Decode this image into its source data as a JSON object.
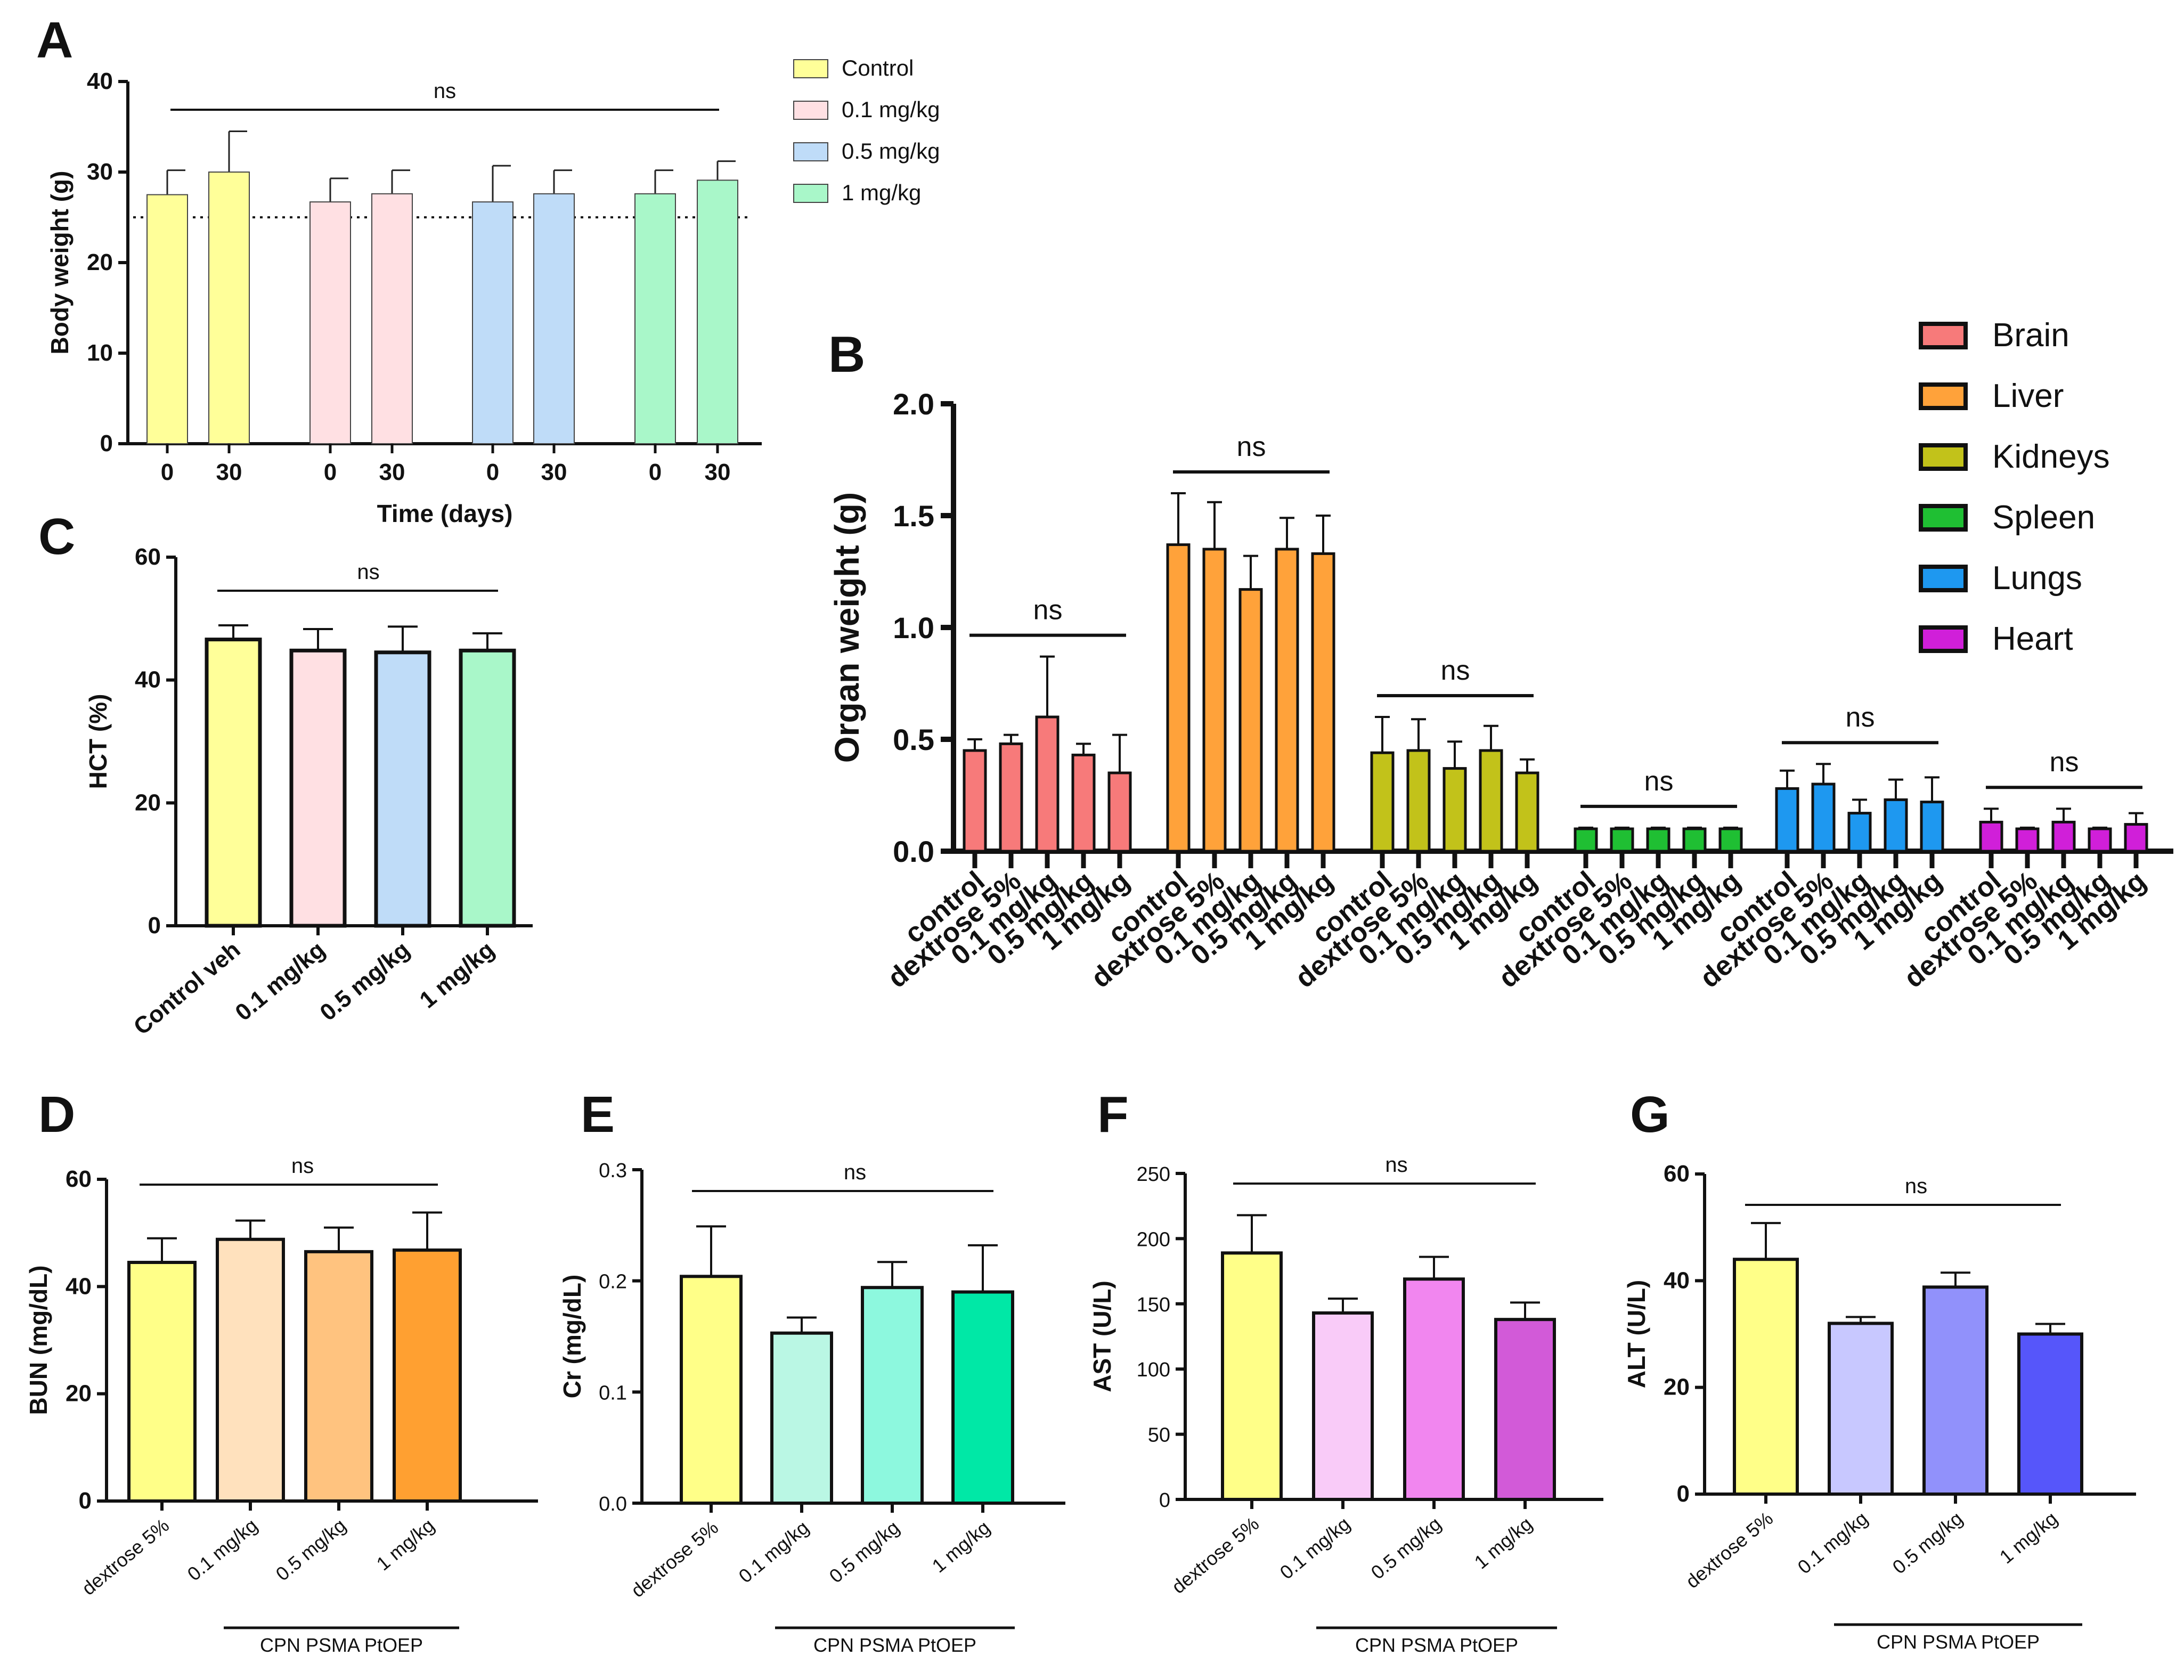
{
  "chart_data": [
    {
      "panel": "A",
      "type": "bar",
      "ylabel": "Body weight (g)",
      "xlabel": "Time (days)",
      "ylim": [
        0,
        40
      ],
      "yticks": [
        "0",
        "10",
        "20",
        "30",
        "40"
      ],
      "significance": "ns",
      "reference_line_y": 25,
      "series": [
        {
          "name": "Control",
          "color": "#ffff99",
          "categories": [
            "0",
            "30"
          ],
          "values": [
            27.5,
            30.0
          ],
          "errors": [
            2.7,
            4.5
          ]
        },
        {
          "name": "0.1 mg/kg",
          "color": "#ffe0e3",
          "categories": [
            "0",
            "30"
          ],
          "values": [
            26.7,
            27.6
          ],
          "errors": [
            2.6,
            2.6
          ]
        },
        {
          "name": "0.5 mg/kg",
          "color": "#bfdcf8",
          "categories": [
            "0",
            "30"
          ],
          "values": [
            26.7,
            27.6
          ],
          "errors": [
            4.0,
            2.6
          ]
        },
        {
          "name": "1 mg/kg",
          "color": "#a9f7c9",
          "categories": [
            "0",
            "30"
          ],
          "values": [
            27.6,
            29.1
          ],
          "errors": [
            2.6,
            2.1
          ]
        }
      ]
    },
    {
      "panel": "B",
      "type": "bar",
      "ylabel": "Organ weight (g)",
      "ylim": [
        0,
        2.0
      ],
      "yticks": [
        "0.0",
        "0.5",
        "1.0",
        "1.5",
        "2.0"
      ],
      "categories": [
        "control",
        "dextrose 5%",
        "0.1 mg/kg",
        "0.5 mg/kg",
        "1 mg/kg"
      ],
      "series": [
        {
          "name": "Brain",
          "color": "#f77a7a",
          "values": [
            0.45,
            0.48,
            0.6,
            0.43,
            0.35
          ],
          "errors": [
            0.05,
            0.04,
            0.27,
            0.05,
            0.17
          ],
          "significance": "ns"
        },
        {
          "name": "Liver",
          "color": "#ffa23a",
          "values": [
            1.37,
            1.35,
            1.17,
            1.35,
            1.33
          ],
          "errors": [
            0.23,
            0.21,
            0.15,
            0.14,
            0.17
          ],
          "significance": "ns"
        },
        {
          "name": "Kidneys",
          "color": "#c2c21a",
          "values": [
            0.44,
            0.45,
            0.37,
            0.45,
            0.35
          ],
          "errors": [
            0.16,
            0.14,
            0.12,
            0.11,
            0.06
          ],
          "significance": "ns"
        },
        {
          "name": "Spleen",
          "color": "#1fbf33",
          "values": [
            0.1,
            0.1,
            0.1,
            0.1,
            0.1
          ],
          "errors": [
            0.005,
            0.005,
            0.005,
            0.005,
            0.005
          ],
          "significance": "ns"
        },
        {
          "name": "Lungs",
          "color": "#1e98f0",
          "values": [
            0.28,
            0.3,
            0.17,
            0.23,
            0.22
          ],
          "errors": [
            0.08,
            0.09,
            0.06,
            0.09,
            0.11
          ],
          "significance": "ns"
        },
        {
          "name": "Heart",
          "color": "#d01fd9",
          "values": [
            0.13,
            0.1,
            0.13,
            0.1,
            0.12
          ],
          "errors": [
            0.06,
            0.005,
            0.06,
            0.005,
            0.05
          ],
          "significance": "ns"
        }
      ]
    },
    {
      "panel": "C",
      "type": "bar",
      "ylabel": "HCT (%)",
      "ylim": [
        0,
        60
      ],
      "yticks": [
        "0",
        "20",
        "40",
        "60"
      ],
      "categories": [
        "Control veh",
        "0.1 mg/kg",
        "0.5 mg/kg",
        "1 mg/kg"
      ],
      "values": [
        46.6,
        44.8,
        44.5,
        44.8
      ],
      "errors": [
        2.3,
        3.5,
        4.2,
        2.8
      ],
      "colors": [
        "#ffff99",
        "#ffe0e3",
        "#bfdcf8",
        "#a9f7c9"
      ],
      "significance": "ns"
    },
    {
      "panel": "D",
      "type": "bar",
      "ylabel": "BUN (mg/dL)",
      "ylim": [
        0,
        60
      ],
      "yticks": [
        "0",
        "20",
        "40",
        "60"
      ],
      "categories": [
        "dextrose 5%",
        "0.1 mg/kg",
        "0.5 mg/kg",
        "1 mg/kg"
      ],
      "values": [
        44.5,
        48.8,
        46.5,
        46.8
      ],
      "errors": [
        4.5,
        3.5,
        4.5,
        7.0
      ],
      "colors": [
        "#ffff88",
        "#ffe1bd",
        "#ffc37f",
        "#ffa031"
      ],
      "significance": "ns",
      "group_label": "CPN PSMA PtOEP"
    },
    {
      "panel": "E",
      "type": "bar",
      "ylabel": "Cr (mg/dL)",
      "ylim": [
        0,
        0.3
      ],
      "yticks": [
        "0.0",
        "0.1",
        "0.2",
        "0.3"
      ],
      "categories": [
        "dextrose 5%",
        "0.1 mg/kg",
        "0.5 mg/kg",
        "1 mg/kg"
      ],
      "values": [
        0.204,
        0.153,
        0.194,
        0.19
      ],
      "errors": [
        0.045,
        0.014,
        0.023,
        0.042
      ],
      "colors": [
        "#ffff88",
        "#baf7e4",
        "#8df8de",
        "#00e8a6"
      ],
      "significance": "ns",
      "group_label": "CPN PSMA PtOEP"
    },
    {
      "panel": "F",
      "type": "bar",
      "ylabel": "AST (U/L)",
      "ylim": [
        0,
        250
      ],
      "yticks": [
        "0",
        "50",
        "100",
        "150",
        "200",
        "250"
      ],
      "categories": [
        "dextrose 5%",
        "0.1 mg/kg",
        "0.5 mg/kg",
        "1 mg/kg"
      ],
      "values": [
        189,
        143,
        169,
        138
      ],
      "errors": [
        29,
        11,
        17,
        13
      ],
      "colors": [
        "#ffff88",
        "#f9cbf8",
        "#f186ef",
        "#d25ad8"
      ],
      "significance": "ns",
      "group_label": "CPN PSMA PtOEP"
    },
    {
      "panel": "G",
      "type": "bar",
      "ylabel": "ALT (U/L)",
      "ylim": [
        0,
        60
      ],
      "yticks": [
        "0",
        "20",
        "40",
        "60"
      ],
      "categories": [
        "dextrose 5%",
        "0.1 mg/kg",
        "0.5 mg/kg",
        "1 mg/kg"
      ],
      "values": [
        44.0,
        32.0,
        38.8,
        30.0
      ],
      "errors": [
        6.8,
        1.2,
        2.7,
        1.9
      ],
      "colors": [
        "#ffff88",
        "#c8c8ff",
        "#9191fb",
        "#5656fa"
      ],
      "significance": "ns",
      "group_label": "CPN PSMA PtOEP"
    }
  ]
}
